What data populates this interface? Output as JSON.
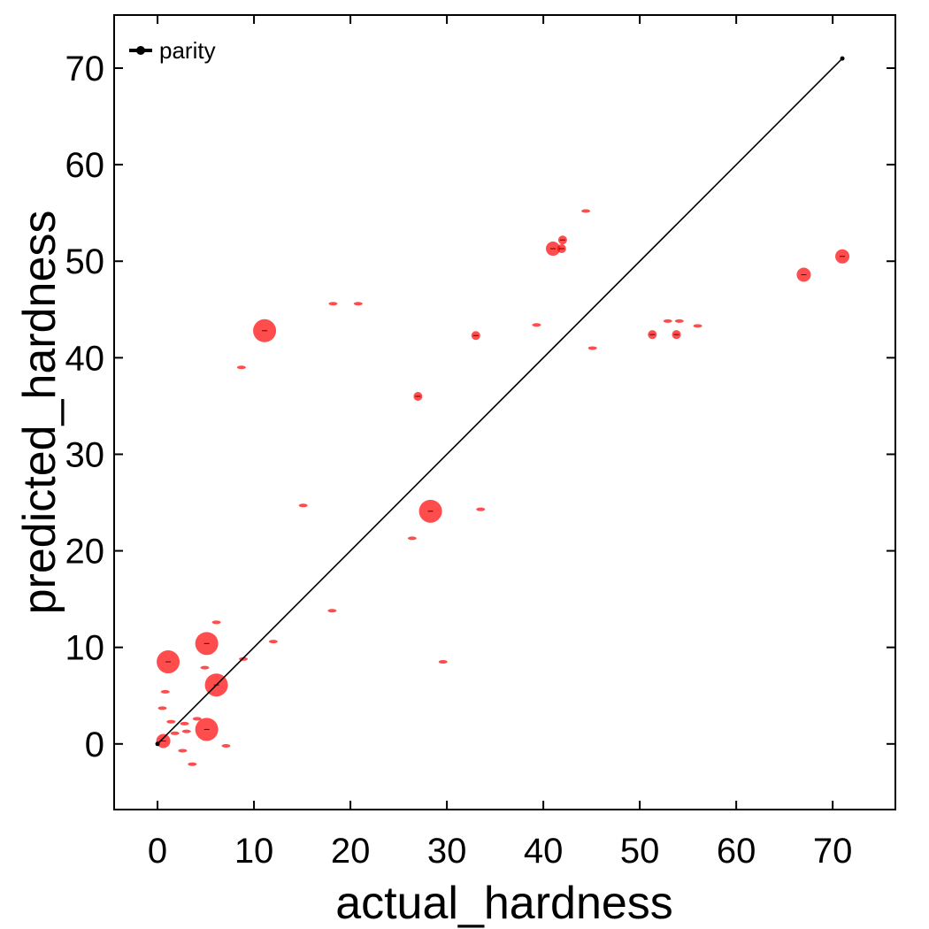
{
  "chart_data": {
    "type": "scatter",
    "xlabel": "actual_hardness",
    "ylabel": "predicted_hardness",
    "xlim": [
      -4.5,
      76.5
    ],
    "ylim": [
      -6.8,
      75.5
    ],
    "xticks": [
      0,
      10,
      20,
      30,
      40,
      50,
      60,
      70
    ],
    "yticks": [
      0,
      10,
      20,
      30,
      40,
      50,
      60,
      70
    ],
    "grid": false,
    "legend": {
      "position": "top-left",
      "entries": [
        "parity"
      ]
    },
    "series": [
      {
        "name": "parity",
        "type": "line",
        "color": "#000000",
        "x": [
          0,
          71
        ],
        "y": [
          0,
          71
        ]
      },
      {
        "type": "scatter",
        "color": "#ff0000",
        "points": [
          {
            "x": 11.1,
            "y": 42.8,
            "size": "large"
          },
          {
            "x": 28.3,
            "y": 24.1,
            "size": "large"
          },
          {
            "x": 1.1,
            "y": 8.5,
            "size": "large"
          },
          {
            "x": 5.1,
            "y": 10.4,
            "size": "large"
          },
          {
            "x": 6.1,
            "y": 6.1,
            "size": "large"
          },
          {
            "x": 5.1,
            "y": 1.5,
            "size": "large"
          },
          {
            "x": 41.0,
            "y": 51.3,
            "size": "medium"
          },
          {
            "x": 67.0,
            "y": 48.6,
            "size": "medium"
          },
          {
            "x": 71.0,
            "y": 50.5,
            "size": "medium"
          },
          {
            "x": 0.6,
            "y": 0.3,
            "size": "medium"
          },
          {
            "x": 27.0,
            "y": 36.0,
            "size": "small"
          },
          {
            "x": 33.0,
            "y": 42.3,
            "size": "small"
          },
          {
            "x": 51.3,
            "y": 42.4,
            "size": "small"
          },
          {
            "x": 53.8,
            "y": 42.4,
            "size": "small"
          },
          {
            "x": 41.9,
            "y": 51.3,
            "size": "small"
          },
          {
            "x": 42.0,
            "y": 52.2,
            "size": "small"
          },
          {
            "x": 45.1,
            "y": 41.0,
            "size": "tiny"
          },
          {
            "x": 44.4,
            "y": 55.2,
            "size": "tiny"
          },
          {
            "x": 39.3,
            "y": 43.4,
            "size": "tiny"
          },
          {
            "x": 52.9,
            "y": 43.8,
            "size": "tiny"
          },
          {
            "x": 54.1,
            "y": 43.8,
            "size": "tiny"
          },
          {
            "x": 56.0,
            "y": 43.3,
            "size": "tiny"
          },
          {
            "x": 8.7,
            "y": 39.0,
            "size": "tiny"
          },
          {
            "x": 18.2,
            "y": 45.6,
            "size": "tiny"
          },
          {
            "x": 20.8,
            "y": 45.6,
            "size": "tiny"
          },
          {
            "x": 15.1,
            "y": 24.7,
            "size": "tiny"
          },
          {
            "x": 33.5,
            "y": 24.3,
            "size": "tiny"
          },
          {
            "x": 26.4,
            "y": 21.3,
            "size": "tiny"
          },
          {
            "x": 18.1,
            "y": 13.8,
            "size": "tiny"
          },
          {
            "x": 12.0,
            "y": 10.6,
            "size": "tiny"
          },
          {
            "x": 6.1,
            "y": 12.6,
            "size": "tiny"
          },
          {
            "x": 8.9,
            "y": 8.8,
            "size": "tiny"
          },
          {
            "x": 29.6,
            "y": 8.5,
            "size": "tiny"
          },
          {
            "x": 4.9,
            "y": 7.9,
            "size": "tiny"
          },
          {
            "x": 0.8,
            "y": 5.4,
            "size": "tiny"
          },
          {
            "x": 0.5,
            "y": 3.7,
            "size": "tiny"
          },
          {
            "x": 1.4,
            "y": 2.3,
            "size": "tiny"
          },
          {
            "x": 4.1,
            "y": 2.6,
            "size": "tiny"
          },
          {
            "x": 2.8,
            "y": 2.1,
            "size": "tiny"
          },
          {
            "x": 1.8,
            "y": 1.1,
            "size": "tiny"
          },
          {
            "x": 3.0,
            "y": 1.3,
            "size": "tiny"
          },
          {
            "x": 2.6,
            "y": -0.7,
            "size": "tiny"
          },
          {
            "x": 7.1,
            "y": -0.2,
            "size": "tiny"
          },
          {
            "x": 3.6,
            "y": -2.1,
            "size": "tiny"
          }
        ]
      }
    ]
  }
}
